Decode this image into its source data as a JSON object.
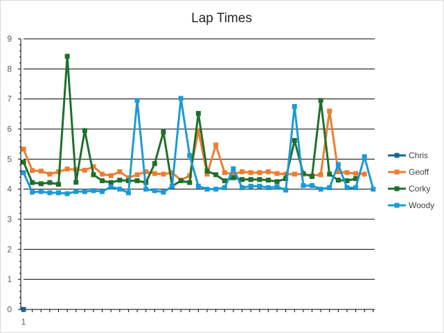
{
  "chart_data": {
    "type": "line",
    "title": "Lap Times",
    "xlabel": "",
    "ylabel": "",
    "ylim": [
      0,
      9
    ],
    "yticks": [
      0,
      1,
      2,
      3,
      4,
      5,
      6,
      7,
      8,
      9
    ],
    "x_tick_labels": [
      "1"
    ],
    "grid": true,
    "legend_position": "right",
    "series": [
      {
        "name": "Chris",
        "color": "#1f6391",
        "values": [
          0
        ]
      },
      {
        "name": "Geoff",
        "color": "#ed7d31",
        "values": [
          5.33,
          4.62,
          4.6,
          4.5,
          4.58,
          4.67,
          4.65,
          4.63,
          4.75,
          4.5,
          4.45,
          4.58,
          4.38,
          4.48,
          4.58,
          4.52,
          4.5,
          4.55,
          4.3,
          4.45,
          5.95,
          4.5,
          5.47,
          4.55,
          4.5,
          4.58,
          4.55,
          4.55,
          4.58,
          4.52,
          4.5,
          4.5,
          4.5,
          4.45,
          4.48,
          6.6,
          4.58,
          4.55,
          4.52,
          4.5
        ]
      },
      {
        "name": "Corky",
        "color": "#1f6f2b",
        "values": [
          4.9,
          4.22,
          4.18,
          4.22,
          4.16,
          8.42,
          4.23,
          5.95,
          4.48,
          4.28,
          4.22,
          4.3,
          4.28,
          4.28,
          4.22,
          4.85,
          5.9,
          4.1,
          4.28,
          4.22,
          6.52,
          4.6,
          4.48,
          4.28,
          4.38,
          4.32,
          4.32,
          4.32,
          4.3,
          4.25,
          4.35,
          5.62,
          4.52,
          4.42,
          6.95,
          4.5,
          4.3,
          4.28,
          4.35
        ]
      },
      {
        "name": "Woody",
        "color": "#1a9ad6",
        "values": [
          4.55,
          3.9,
          3.92,
          3.88,
          3.88,
          3.85,
          3.92,
          3.92,
          3.95,
          3.92,
          4.08,
          4.0,
          3.88,
          6.95,
          4.0,
          3.95,
          3.9,
          4.1,
          7.02,
          5.12,
          4.1,
          4.0,
          4.0,
          4.05,
          4.68,
          4.05,
          4.1,
          4.1,
          4.05,
          4.08,
          3.97,
          6.75,
          4.12,
          4.12,
          4.0,
          4.05,
          4.82,
          4.05,
          4.05,
          5.08,
          4.0
        ]
      }
    ]
  }
}
